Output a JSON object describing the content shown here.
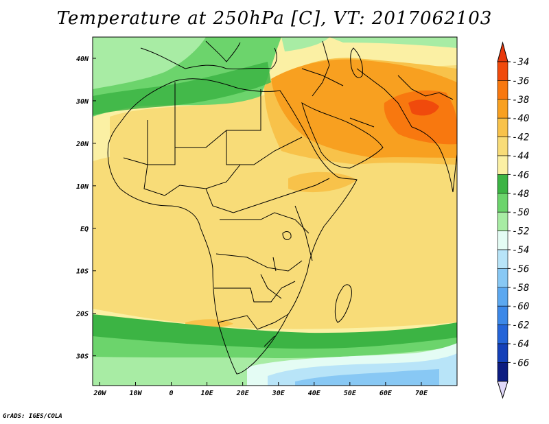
{
  "title": "Temperature at 250hPa [C], VT: 2017062103",
  "credit": "GrADS: IGES/COLA",
  "map": {
    "lon_range": [
      -22,
      80
    ],
    "lat_range": [
      -37,
      45
    ],
    "x_ticks": [
      {
        "lon": -20,
        "label": "20W"
      },
      {
        "lon": -10,
        "label": "10W"
      },
      {
        "lon": 0,
        "label": "0"
      },
      {
        "lon": 10,
        "label": "10E"
      },
      {
        "lon": 20,
        "label": "20E"
      },
      {
        "lon": 30,
        "label": "30E"
      },
      {
        "lon": 40,
        "label": "40E"
      },
      {
        "lon": 50,
        "label": "50E"
      },
      {
        "lon": 60,
        "label": "60E"
      },
      {
        "lon": 70,
        "label": "70E"
      }
    ],
    "y_ticks": [
      {
        "lat": 40,
        "label": "40N"
      },
      {
        "lat": 30,
        "label": "30N"
      },
      {
        "lat": 20,
        "label": "20N"
      },
      {
        "lat": 10,
        "label": "10N"
      },
      {
        "lat": 0,
        "label": "EQ"
      },
      {
        "lat": -10,
        "label": "10S"
      },
      {
        "lat": -20,
        "label": "20S"
      },
      {
        "lat": -30,
        "label": "30S"
      }
    ]
  },
  "colorbar": {
    "labels": [
      "-34",
      "-36",
      "-38",
      "-40",
      "-42",
      "-44",
      "-46",
      "-48",
      "-50",
      "-52",
      "-54",
      "-56",
      "-58",
      "-60",
      "-62",
      "-64",
      "-66"
    ],
    "colors": [
      "#f04a0c",
      "#f8780f",
      "#f8a020",
      "#f8c24a",
      "#f8dc78",
      "#fbf0a4",
      "#3cb444",
      "#6cd46c",
      "#a8eca4",
      "#e4fcf4",
      "#b8e4f8",
      "#88c8f4",
      "#5ca8f0",
      "#3c88e8",
      "#2464d8",
      "#1440b8",
      "#0c1c80"
    ],
    "top_arrow": "#e8380c",
    "bottom_arrow": "#e0d8f8"
  }
}
